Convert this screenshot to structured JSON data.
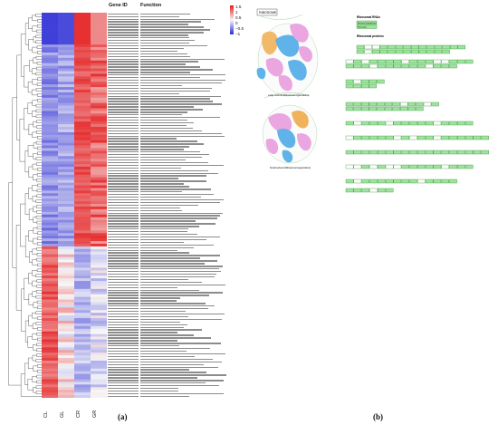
{
  "panel_a": {
    "header_gene_id": "Gene ID",
    "header_function": "Function",
    "columns": [
      "CL",
      "GL",
      "CR",
      "GR"
    ],
    "legend_ticks": [
      "1.5",
      "1",
      "0.5",
      "0",
      "−0.5",
      "−1"
    ],
    "label": "(a)",
    "colors": {
      "high": "#e41a1c",
      "mid": "#f7f7f7",
      "low": "#2b2bd6"
    }
  },
  "panel_b": {
    "label": "(b)",
    "map_tag": "RIBOSOME",
    "legend_title": "Ribosomal RNAs",
    "legend_rows": [
      "Bacterial (cytoplasm)",
      "Eukaryotic"
    ],
    "proteins_title": "Ribosomal proteins",
    "large_caption": "Large subunit (Ribosomal organization)",
    "small_caption": "Small subunit (Ribosomal organization)",
    "colors": {
      "box": "#9ee39e",
      "border": "#2e8b2e",
      "pink": "#e9a6e0",
      "blue": "#5fb3e8",
      "orange": "#f0b25a"
    }
  }
}
